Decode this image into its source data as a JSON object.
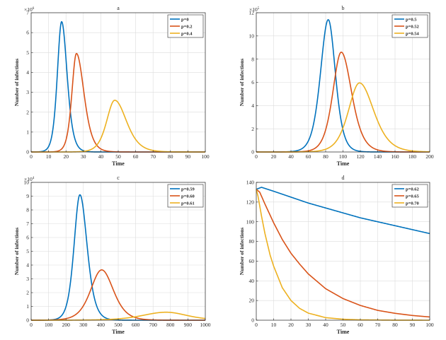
{
  "colors": {
    "series1": "#0072BD",
    "series2": "#D95319",
    "series3": "#EDB120",
    "grid": "#dcdcdc",
    "axis": "#262626"
  },
  "chart_data": [
    {
      "type": "line",
      "title": "a",
      "xlabel": "Time",
      "ylabel": "Number of infections",
      "xlim": [
        0,
        100
      ],
      "ylim": [
        0,
        7
      ],
      "xticks": [
        0,
        10,
        20,
        30,
        40,
        50,
        60,
        70,
        80,
        90,
        100
      ],
      "xtick_labels": [
        "0",
        "10",
        "20",
        "30",
        "40",
        "50",
        "60",
        "70",
        "80",
        "90",
        "100"
      ],
      "yticks": [
        0,
        1,
        2,
        3,
        4,
        5,
        6,
        7
      ],
      "ytick_labels": [
        "0",
        "1",
        "2",
        "3",
        "4",
        "5",
        "6",
        "7"
      ],
      "multiplier": {
        "base": "×10",
        "exponent": "6"
      },
      "grid": true,
      "legend_position": "top-right",
      "series": [
        {
          "name": "p=0",
          "peak_x": 17.5,
          "peak_y": 6.55,
          "width_left": 3.3,
          "width_right": 4.2
        },
        {
          "name": "p=0.2",
          "peak_x": 26,
          "peak_y": 4.95,
          "width_left": 3.5,
          "width_right": 5.8
        },
        {
          "name": "p=0.4",
          "peak_x": 48,
          "peak_y": 2.6,
          "width_left": 6.2,
          "width_right": 9.0
        }
      ]
    },
    {
      "type": "line",
      "title": "b",
      "xlabel": "Time",
      "ylabel": "Number of infections",
      "xlim": [
        0,
        200
      ],
      "ylim": [
        0,
        12
      ],
      "xticks": [
        0,
        20,
        40,
        60,
        80,
        100,
        120,
        140,
        160,
        180,
        200
      ],
      "xtick_labels": [
        "0",
        "20",
        "40",
        "60",
        "80",
        "100",
        "120",
        "140",
        "160",
        "180",
        "200"
      ],
      "yticks": [
        0,
        2,
        4,
        6,
        8,
        10,
        12
      ],
      "ytick_labels": [
        "0",
        "2",
        "4",
        "6",
        "8",
        "10",
        "12"
      ],
      "multiplier": {
        "base": "×10",
        "exponent": "5"
      },
      "grid": true,
      "legend_position": "top-right",
      "series": [
        {
          "name": "p=0.5",
          "peak_x": 83,
          "peak_y": 11.4,
          "width_left": 12,
          "width_right": 11
        },
        {
          "name": "p=0.52",
          "peak_x": 98,
          "peak_y": 8.6,
          "width_left": 13,
          "width_right": 16
        },
        {
          "name": "p=0.54",
          "peak_x": 119,
          "peak_y": 5.95,
          "width_left": 17,
          "width_right": 22
        }
      ]
    },
    {
      "type": "line",
      "title": "c",
      "xlabel": "Time",
      "ylabel": "Number of infections",
      "xlim": [
        0,
        1000
      ],
      "ylim": [
        0,
        10
      ],
      "xticks": [
        0,
        100,
        200,
        300,
        400,
        500,
        600,
        700,
        800,
        900,
        1000
      ],
      "xtick_labels": [
        "0",
        "100",
        "200",
        "300",
        "400",
        "500",
        "600",
        "700",
        "800",
        "900",
        "1000"
      ],
      "yticks": [
        0,
        1,
        2,
        3,
        4,
        5,
        6,
        7,
        8,
        9,
        10
      ],
      "ytick_labels": [
        "0",
        "1",
        "2",
        "3",
        "4",
        "5",
        "6",
        "7",
        "8",
        "9",
        "10"
      ],
      "multiplier": {
        "base": "×10",
        "exponent": "4"
      },
      "grid": true,
      "legend_position": "top-right",
      "series": [
        {
          "name": "p=0.59",
          "peak_x": 280,
          "peak_y": 9.1,
          "width_left": 45,
          "width_right": 55
        },
        {
          "name": "p=0.60",
          "peak_x": 405,
          "peak_y": 3.65,
          "width_left": 85,
          "width_right": 90
        },
        {
          "name": "p=0.61",
          "peak_x": 775,
          "peak_y": 0.58,
          "width_left": 180,
          "width_right": 160
        }
      ]
    },
    {
      "type": "line",
      "title": "d",
      "xlabel": "Time",
      "ylabel": "Number of infections",
      "xlim": [
        0,
        100
      ],
      "ylim": [
        0,
        140
      ],
      "xticks": [
        0,
        10,
        20,
        30,
        40,
        50,
        60,
        70,
        80,
        90,
        100
      ],
      "xtick_labels": [
        "0",
        "10",
        "20",
        "30",
        "40",
        "50",
        "60",
        "70",
        "80",
        "90",
        "100"
      ],
      "yticks": [
        0,
        20,
        40,
        60,
        80,
        100,
        120,
        140
      ],
      "ytick_labels": [
        "0",
        "20",
        "40",
        "60",
        "80",
        "100",
        "120",
        "140"
      ],
      "grid": true,
      "legend_position": "top-right",
      "series": [
        {
          "name": "p=0.62",
          "x": [
            0,
            3,
            10,
            20,
            30,
            40,
            50,
            60,
            70,
            80,
            90,
            100
          ],
          "y": [
            133,
            135,
            131,
            125,
            119,
            114,
            109,
            104,
            100,
            96,
            92,
            88
          ]
        },
        {
          "name": "p=0.65",
          "x": [
            0,
            2,
            5,
            10,
            15,
            20,
            25,
            30,
            40,
            50,
            60,
            70,
            80,
            90,
            100
          ],
          "y": [
            133,
            130,
            118,
            99,
            82,
            68,
            57,
            47,
            32,
            22,
            15,
            10,
            7,
            4.8,
            3.3
          ]
        },
        {
          "name": "p=0.70",
          "x": [
            0,
            1,
            3,
            5,
            8,
            10,
            15,
            20,
            25,
            30,
            40,
            50,
            60,
            80,
            100
          ],
          "y": [
            133,
            126,
            106,
            88,
            66,
            55,
            33,
            20,
            12,
            7.2,
            2.6,
            1,
            0.35,
            0.05,
            0
          ]
        }
      ]
    }
  ]
}
